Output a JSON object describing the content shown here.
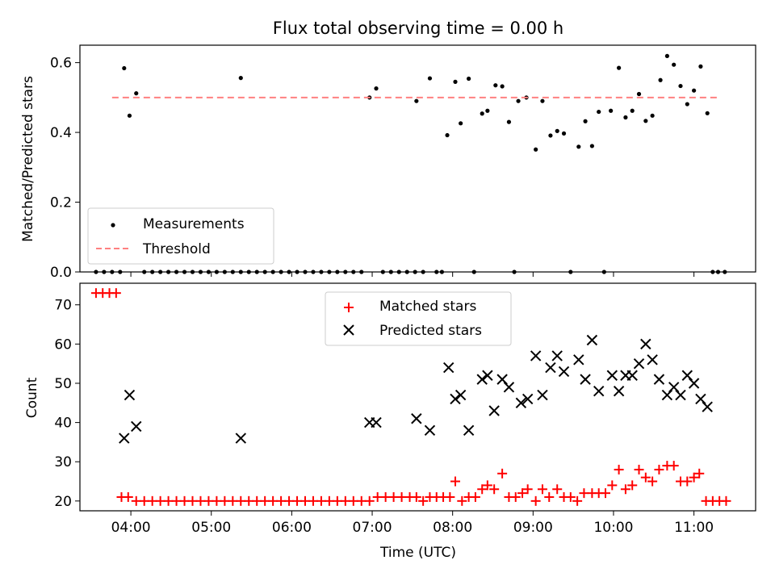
{
  "chart_data": [
    {
      "type": "scatter",
      "title": "Flux total observing time = 0.00 h",
      "xlabel": "",
      "ylabel": "Matched/Predicted stars",
      "xlim": [
        "03:22",
        "11:46"
      ],
      "ylim": [
        0,
        0.65
      ],
      "yticks": [
        0.0,
        0.2,
        0.4,
        0.6
      ],
      "xticks": [
        "04:00",
        "05:00",
        "06:00",
        "07:00",
        "08:00",
        "09:00",
        "10:00",
        "11:00"
      ],
      "show_x_tick_labels": false,
      "grid": false,
      "legend": "lower-left",
      "series": [
        {
          "name": "Measurements",
          "kind": "scatter",
          "color": "#000000",
          "marker": "dot",
          "points": [
            [
              "03:34",
              0
            ],
            [
              "03:40",
              0
            ],
            [
              "03:46",
              0
            ],
            [
              "03:52",
              0
            ],
            [
              "03:55",
              0.584
            ],
            [
              "03:59",
              0.448
            ],
            [
              "04:04",
              0.512
            ],
            [
              "04:10",
              0
            ],
            [
              "04:16",
              0
            ],
            [
              "04:22",
              0
            ],
            [
              "04:28",
              0
            ],
            [
              "04:34",
              0
            ],
            [
              "04:40",
              0
            ],
            [
              "04:46",
              0
            ],
            [
              "04:52",
              0
            ],
            [
              "04:58",
              0
            ],
            [
              "05:04",
              0
            ],
            [
              "05:10",
              0
            ],
            [
              "05:16",
              0
            ],
            [
              "05:22",
              0
            ],
            [
              "05:28",
              0
            ],
            [
              "05:34",
              0
            ],
            [
              "05:40",
              0
            ],
            [
              "05:22",
              0.556
            ],
            [
              "05:46",
              0
            ],
            [
              "05:52",
              0
            ],
            [
              "05:58",
              0
            ],
            [
              "06:04",
              0
            ],
            [
              "06:10",
              0
            ],
            [
              "06:16",
              0
            ],
            [
              "06:22",
              0
            ],
            [
              "06:28",
              0
            ],
            [
              "06:34",
              0
            ],
            [
              "06:40",
              0
            ],
            [
              "06:46",
              0
            ],
            [
              "06:52",
              0
            ],
            [
              "06:58",
              0.5
            ],
            [
              "07:03",
              0.526
            ],
            [
              "07:08",
              0
            ],
            [
              "07:14",
              0
            ],
            [
              "07:20",
              0
            ],
            [
              "07:26",
              0
            ],
            [
              "07:32",
              0
            ],
            [
              "07:33",
              0.49
            ],
            [
              "07:43",
              0.555
            ],
            [
              "07:38",
              0
            ],
            [
              "07:48",
              0
            ],
            [
              "07:52",
              0
            ],
            [
              "07:56",
              0.392
            ],
            [
              "08:02",
              0.545
            ],
            [
              "08:06",
              0.426
            ],
            [
              "08:12",
              0.554
            ],
            [
              "08:16",
              0
            ],
            [
              "08:22",
              0.454
            ],
            [
              "08:26",
              0.462
            ],
            [
              "08:32",
              0.535
            ],
            [
              "08:37",
              0.532
            ],
            [
              "08:42",
              0.43
            ],
            [
              "08:46",
              0
            ],
            [
              "08:49",
              0.49
            ],
            [
              "08:55",
              0.5
            ],
            [
              "09:02",
              0.351
            ],
            [
              "09:07",
              0.49
            ],
            [
              "09:13",
              0.391
            ],
            [
              "09:18",
              0.404
            ],
            [
              "09:23",
              0.397
            ],
            [
              "09:28",
              0
            ],
            [
              "09:34",
              0.359
            ],
            [
              "09:39",
              0.432
            ],
            [
              "09:44",
              0.361
            ],
            [
              "09:49",
              0.459
            ],
            [
              "09:53",
              0
            ],
            [
              "09:58",
              0.462
            ],
            [
              "10:04",
              0.585
            ],
            [
              "10:09",
              0.443
            ],
            [
              "10:14",
              0.462
            ],
            [
              "10:19",
              0.51
            ],
            [
              "10:24",
              0.433
            ],
            [
              "10:29",
              0.448
            ],
            [
              "10:35",
              0.55
            ],
            [
              "10:40",
              0.619
            ],
            [
              "10:45",
              0.594
            ],
            [
              "10:50",
              0.533
            ],
            [
              "10:55",
              0.481
            ],
            [
              "11:00",
              0.52
            ],
            [
              "11:05",
              0.589
            ],
            [
              "11:10",
              0.455
            ],
            [
              "11:14",
              0
            ],
            [
              "11:18",
              0
            ],
            [
              "11:23",
              0
            ]
          ]
        },
        {
          "name": "Threshold",
          "kind": "line",
          "color": "#ff8080",
          "dash": true,
          "points": [
            [
              "03:46",
              0.5
            ],
            [
              "11:20",
              0.5
            ]
          ]
        }
      ]
    },
    {
      "type": "scatter",
      "title": "",
      "xlabel": "Time (UTC)",
      "ylabel": "Count",
      "xlim": [
        "03:22",
        "11:46"
      ],
      "ylim": [
        17.5,
        75.5
      ],
      "yticks": [
        20,
        30,
        40,
        50,
        60,
        70
      ],
      "xticks": [
        "04:00",
        "05:00",
        "06:00",
        "07:00",
        "08:00",
        "09:00",
        "10:00",
        "11:00"
      ],
      "show_x_tick_labels": true,
      "grid": false,
      "legend": "upper-center",
      "series": [
        {
          "name": "Matched stars",
          "kind": "scatter",
          "color": "#ff0000",
          "marker": "plus",
          "points": [
            [
              "03:34",
              73
            ],
            [
              "03:39",
              73
            ],
            [
              "03:44",
              73
            ],
            [
              "03:49",
              73
            ],
            [
              "03:53",
              21
            ],
            [
              "03:58",
              21
            ],
            [
              "04:04",
              20
            ],
            [
              "04:10",
              20
            ],
            [
              "04:16",
              20
            ],
            [
              "04:22",
              20
            ],
            [
              "04:28",
              20
            ],
            [
              "04:34",
              20
            ],
            [
              "04:40",
              20
            ],
            [
              "04:46",
              20
            ],
            [
              "04:52",
              20
            ],
            [
              "04:58",
              20
            ],
            [
              "05:04",
              20
            ],
            [
              "05:10",
              20
            ],
            [
              "05:16",
              20
            ],
            [
              "05:22",
              20
            ],
            [
              "05:28",
              20
            ],
            [
              "05:34",
              20
            ],
            [
              "05:40",
              20
            ],
            [
              "05:46",
              20
            ],
            [
              "05:52",
              20
            ],
            [
              "05:58",
              20
            ],
            [
              "06:04",
              20
            ],
            [
              "06:10",
              20
            ],
            [
              "06:16",
              20
            ],
            [
              "06:22",
              20
            ],
            [
              "06:28",
              20
            ],
            [
              "06:34",
              20
            ],
            [
              "06:40",
              20
            ],
            [
              "06:46",
              20
            ],
            [
              "06:52",
              20
            ],
            [
              "06:58",
              20
            ],
            [
              "07:04",
              21
            ],
            [
              "07:10",
              21
            ],
            [
              "07:16",
              21
            ],
            [
              "07:22",
              21
            ],
            [
              "07:28",
              21
            ],
            [
              "07:33",
              21
            ],
            [
              "07:38",
              20
            ],
            [
              "07:43",
              21
            ],
            [
              "07:48",
              21
            ],
            [
              "07:53",
              21
            ],
            [
              "07:58",
              21
            ],
            [
              "08:02",
              25
            ],
            [
              "08:07",
              20
            ],
            [
              "08:12",
              21
            ],
            [
              "08:17",
              21
            ],
            [
              "08:22",
              23
            ],
            [
              "08:26",
              24
            ],
            [
              "08:31",
              23
            ],
            [
              "08:37",
              27
            ],
            [
              "08:42",
              21
            ],
            [
              "08:47",
              21
            ],
            [
              "08:52",
              22
            ],
            [
              "08:56",
              23
            ],
            [
              "09:02",
              20
            ],
            [
              "09:07",
              23
            ],
            [
              "09:12",
              21
            ],
            [
              "09:18",
              23
            ],
            [
              "09:23",
              21
            ],
            [
              "09:28",
              21
            ],
            [
              "09:33",
              20
            ],
            [
              "09:38",
              22
            ],
            [
              "09:44",
              22
            ],
            [
              "09:49",
              22
            ],
            [
              "09:54",
              22
            ],
            [
              "09:59",
              24
            ],
            [
              "10:04",
              28
            ],
            [
              "10:09",
              23
            ],
            [
              "10:14",
              24
            ],
            [
              "10:19",
              28
            ],
            [
              "10:24",
              26
            ],
            [
              "10:29",
              25
            ],
            [
              "10:34",
              28
            ],
            [
              "10:40",
              29
            ],
            [
              "10:45",
              29
            ],
            [
              "10:50",
              25
            ],
            [
              "10:55",
              25
            ],
            [
              "11:00",
              26
            ],
            [
              "11:04",
              27
            ],
            [
              "11:09",
              20
            ],
            [
              "11:14",
              20
            ],
            [
              "11:19",
              20
            ],
            [
              "11:24",
              20
            ]
          ]
        },
        {
          "name": "Predicted stars",
          "kind": "scatter",
          "color": "#000000",
          "marker": "x",
          "points": [
            [
              "03:55",
              36
            ],
            [
              "03:59",
              47
            ],
            [
              "04:04",
              39
            ],
            [
              "05:22",
              36
            ],
            [
              "06:58",
              40
            ],
            [
              "07:03",
              40
            ],
            [
              "07:33",
              41
            ],
            [
              "07:43",
              38
            ],
            [
              "07:57",
              54
            ],
            [
              "08:02",
              46
            ],
            [
              "08:06",
              47
            ],
            [
              "08:12",
              38
            ],
            [
              "08:22",
              51
            ],
            [
              "08:26",
              52
            ],
            [
              "08:31",
              43
            ],
            [
              "08:37",
              51
            ],
            [
              "08:42",
              49
            ],
            [
              "08:51",
              45
            ],
            [
              "08:56",
              46
            ],
            [
              "09:02",
              57
            ],
            [
              "09:07",
              47
            ],
            [
              "09:13",
              54
            ],
            [
              "09:18",
              57
            ],
            [
              "09:23",
              53
            ],
            [
              "09:34",
              56
            ],
            [
              "09:39",
              51
            ],
            [
              "09:44",
              61
            ],
            [
              "09:49",
              48
            ],
            [
              "09:59",
              52
            ],
            [
              "10:04",
              48
            ],
            [
              "10:09",
              52
            ],
            [
              "10:14",
              52
            ],
            [
              "10:19",
              55
            ],
            [
              "10:24",
              60
            ],
            [
              "10:29",
              56
            ],
            [
              "10:34",
              51
            ],
            [
              "10:40",
              47
            ],
            [
              "10:45",
              49
            ],
            [
              "10:50",
              47
            ],
            [
              "10:55",
              52
            ],
            [
              "11:00",
              50
            ],
            [
              "11:05",
              46
            ],
            [
              "11:10",
              44
            ]
          ]
        }
      ]
    }
  ]
}
